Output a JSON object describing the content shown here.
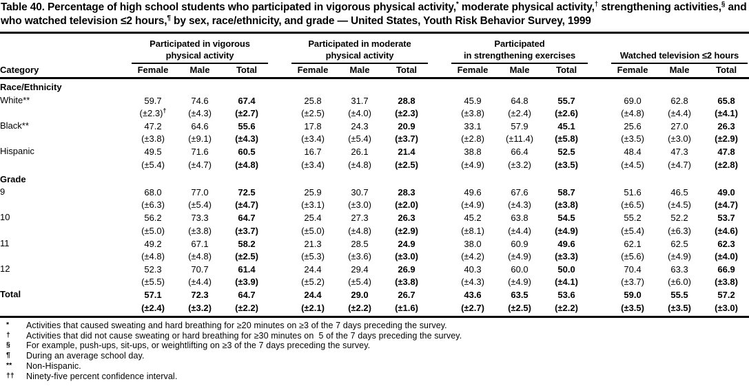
{
  "colors": {
    "text": "#000000",
    "background": "#ffffff",
    "rule": "#000000"
  },
  "title": {
    "segments": [
      {
        "text": "Table 40. Percentage of high school students who participated in vigorous physical activity,"
      },
      {
        "sup": "*"
      },
      {
        "text": " moderate physical activity,"
      },
      {
        "sup": "†"
      },
      {
        "text": " strengthening activities,"
      },
      {
        "sup": "§"
      },
      {
        "text": " and who watched television ≤2 hours,"
      },
      {
        "sup": "¶"
      },
      {
        "text": " by sex, race/ethnicity, and grade — United States, Youth Risk Behavior Survey, 1999"
      }
    ]
  },
  "table": {
    "category_header": "Category",
    "groups": [
      {
        "name": "vigorous-physical-activity",
        "lines": [
          "Participated in vigorous",
          "physical activity"
        ]
      },
      {
        "name": "moderate-physical-activity",
        "lines": [
          "Participated in moderate",
          "physical activity"
        ]
      },
      {
        "name": "strengthening-exercises",
        "lines": [
          "Participated",
          "in strengthening exercises"
        ]
      },
      {
        "name": "watched-television",
        "lines": [
          "Watched television ≤2 hours"
        ]
      }
    ],
    "subheaders": [
      "Female",
      "Male",
      "Total"
    ],
    "bold_value_columns": [
      2,
      5,
      8,
      11
    ],
    "sections": [
      {
        "label": "Race/Ethnicity",
        "rows": [
          {
            "category": "White**",
            "values": [
              "59.7",
              "74.6",
              "67.4",
              "25.8",
              "31.7",
              "28.8",
              "45.9",
              "64.8",
              "55.7",
              "69.0",
              "62.8",
              "65.8"
            ],
            "cis": [
              "(±2.3)",
              "(±4.3)",
              "(±2.7)",
              "(±2.5)",
              "(±4.0)",
              "(±2.3)",
              "(±3.8)",
              "(±2.4)",
              "(±2.6)",
              "(±4.8)",
              "(±4.4)",
              "(±4.1)"
            ],
            "ci_sups": {
              "0": "†"
            }
          },
          {
            "category": "Black**",
            "values": [
              "47.2",
              "64.6",
              "55.6",
              "17.8",
              "24.3",
              "20.9",
              "33.1",
              "57.9",
              "45.1",
              "25.6",
              "27.0",
              "26.3"
            ],
            "cis": [
              "(±3.8)",
              "(±9.1)",
              "(±4.3)",
              "(±3.4)",
              "(±5.4)",
              "(±3.7)",
              "(±2.8)",
              "(±11.4)",
              "(±5.8)",
              "(±3.5)",
              "(±3.0)",
              "(±2.9)"
            ]
          },
          {
            "category": "Hispanic",
            "values": [
              "49.5",
              "71.6",
              "60.5",
              "16.7",
              "26.1",
              "21.4",
              "38.8",
              "66.4",
              "52.5",
              "48.4",
              "47.3",
              "47.8"
            ],
            "cis": [
              "(±5.4)",
              "(±4.7)",
              "(±4.8)",
              "(±3.4)",
              "(±4.8)",
              "(±2.5)",
              "(±4.9)",
              "(±3.2)",
              "(±3.5)",
              "(±4.5)",
              "(±4.7)",
              "(±2.8)"
            ]
          }
        ]
      },
      {
        "label": "Grade",
        "rows": [
          {
            "category": "9",
            "values": [
              "68.0",
              "77.0",
              "72.5",
              "25.9",
              "30.7",
              "28.3",
              "49.6",
              "67.6",
              "58.7",
              "51.6",
              "46.5",
              "49.0"
            ],
            "cis": [
              "(±6.3)",
              "(±5.4)",
              "(±4.7)",
              "(±3.1)",
              "(±3.0)",
              "(±2.0)",
              "(±4.9)",
              "(±4.3)",
              "(±3.8)",
              "(±6.5)",
              "(±4.5)",
              "(±4.7)"
            ]
          },
          {
            "category": "10",
            "values": [
              "56.2",
              "73.3",
              "64.7",
              "25.4",
              "27.3",
              "26.3",
              "45.2",
              "63.8",
              "54.5",
              "55.2",
              "52.2",
              "53.7"
            ],
            "cis": [
              "(±5.0)",
              "(±3.8)",
              "(±3.7)",
              "(±5.0)",
              "(±4.8)",
              "(±2.9)",
              "(±8.1)",
              "(±4.4)",
              "(±4.9)",
              "(±5.4)",
              "(±6.3)",
              "(±4.6)"
            ]
          },
          {
            "category": "11",
            "values": [
              "49.2",
              "67.1",
              "58.2",
              "21.3",
              "28.5",
              "24.9",
              "38.0",
              "60.9",
              "49.6",
              "62.1",
              "62.5",
              "62.3"
            ],
            "cis": [
              "(±4.8)",
              "(±4.8)",
              "(±2.5)",
              "(±5.3)",
              "(±3.6)",
              "(±3.0)",
              "(±4.2)",
              "(±4.9)",
              "(±3.3)",
              "(±5.6)",
              "(±4.9)",
              "(±4.0)"
            ]
          },
          {
            "category": "12",
            "values": [
              "52.3",
              "70.7",
              "61.4",
              "24.4",
              "29.4",
              "26.9",
              "40.3",
              "60.0",
              "50.0",
              "70.4",
              "63.3",
              "66.9"
            ],
            "cis": [
              "(±5.5)",
              "(±4.4)",
              "(±3.9)",
              "(±5.2)",
              "(±5.4)",
              "(±3.8)",
              "(±4.3)",
              "(±4.9)",
              "(±4.1)",
              "(±3.7)",
              "(±6.0)",
              "(±3.8)"
            ]
          }
        ]
      }
    ],
    "total_row": {
      "category": "Total",
      "values": [
        "57.1",
        "72.3",
        "64.7",
        "24.4",
        "29.0",
        "26.7",
        "43.6",
        "63.5",
        "53.6",
        "59.0",
        "55.5",
        "57.2"
      ],
      "cis": [
        "(±2.4)",
        "(±3.2)",
        "(±2.2)",
        "(±2.1)",
        "(±2.2)",
        "(±1.6)",
        "(±2.7)",
        "(±2.5)",
        "(±2.2)",
        "(±3.5)",
        "(±3.5)",
        "(±3.0)"
      ]
    }
  },
  "footnotes": [
    {
      "marker": "*",
      "text": "Activities that caused sweating and hard breathing for ≥20 minutes on ≥3 of the 7 days preceding the survey."
    },
    {
      "marker": "†",
      "text": "Activities that did not cause sweating or hard breathing for ≥30 minutes on  5 of the 7 days preceding the survey."
    },
    {
      "marker": "§",
      "text": "For example, push-ups, sit-ups, or weightlifting on ≥3 of the 7 days preceding the survey."
    },
    {
      "marker": "¶",
      "text": "During an average school day."
    },
    {
      "marker": "**",
      "text": "Non-Hispanic."
    },
    {
      "marker": "††",
      "text": "Ninety-five percent confidence interval."
    }
  ]
}
